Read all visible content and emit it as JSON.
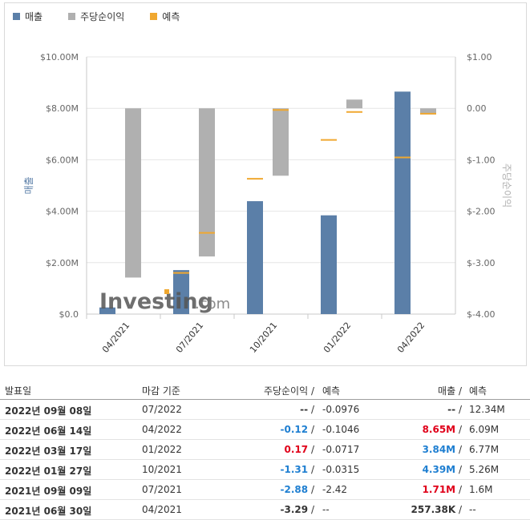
{
  "legend": [
    {
      "label": "매출",
      "color": "#5b7fa8"
    },
    {
      "label": "주당순이익",
      "color": "#b0b0b0"
    },
    {
      "label": "예측",
      "color": "#f0a830"
    }
  ],
  "watermark": {
    "brand": "Investing",
    "suffix": ".com"
  },
  "chart_data": {
    "type": "bar",
    "categories": [
      "04/2021",
      "07/2021",
      "10/2021",
      "01/2022",
      "04/2022"
    ],
    "left_axis": {
      "label": "매출",
      "ylim": [
        0,
        10000000
      ],
      "ticks": [
        0,
        2000000,
        4000000,
        6000000,
        8000000,
        10000000
      ],
      "tick_labels": [
        "$0.0",
        "$2.00M",
        "$4.00M",
        "$6.00M",
        "$8.00M",
        "$10.00M"
      ]
    },
    "right_axis": {
      "label": "주당순이익",
      "ylim": [
        -4,
        1
      ],
      "ticks": [
        -4,
        -3,
        -2,
        -1,
        0,
        1
      ],
      "tick_labels": [
        "$-4.00",
        "$-3.00",
        "$-2.00",
        "$-1.00",
        "0.00",
        "$1.00"
      ]
    },
    "series": [
      {
        "name": "매출",
        "axis": "left",
        "color": "#5b7fa8",
        "values": [
          257380,
          1710000,
          4390000,
          3840000,
          8650000
        ]
      },
      {
        "name": "주당순이익",
        "axis": "right",
        "color": "#b0b0b0",
        "values": [
          -3.29,
          -2.88,
          -1.31,
          0.17,
          -0.12
        ]
      }
    ],
    "forecasts": [
      {
        "name": "예측",
        "axis": "left",
        "color": "#f0a830",
        "values": [
          null,
          1600000,
          5260000,
          6770000,
          6090000
        ]
      },
      {
        "name": "예측",
        "axis": "right",
        "color": "#f0a830",
        "values": [
          null,
          -2.42,
          -0.0315,
          -0.0717,
          -0.1046
        ]
      }
    ],
    "grid": true
  },
  "table": {
    "headers": {
      "date": "발표일",
      "period": "마감 기준",
      "eps": "주당순이익",
      "eps_sep": " /",
      "eps_fc": "예측",
      "rev": "매출",
      "rev_sep": " /",
      "rev_fc": "예측"
    },
    "rows": [
      {
        "date": "2022년 09월 08일",
        "period": "07/2022",
        "eps": "--",
        "eps_cls": "neu",
        "eps_fc": "-0.0976",
        "rev": "--",
        "rev_cls": "neu",
        "rev_fc": "12.34M"
      },
      {
        "date": "2022년 06월 14일",
        "period": "04/2022",
        "eps": "-0.12",
        "eps_cls": "neg",
        "eps_fc": "-0.1046",
        "rev": "8.65M",
        "rev_cls": "pos",
        "rev_fc": "6.09M"
      },
      {
        "date": "2022년 03월 17일",
        "period": "01/2022",
        "eps": "0.17",
        "eps_cls": "pos",
        "eps_fc": "-0.0717",
        "rev": "3.84M",
        "rev_cls": "neg",
        "rev_fc": "6.77M"
      },
      {
        "date": "2022년 01월 27일",
        "period": "10/2021",
        "eps": "-1.31",
        "eps_cls": "neg",
        "eps_fc": "-0.0315",
        "rev": "4.39M",
        "rev_cls": "neg",
        "rev_fc": "5.26M"
      },
      {
        "date": "2021년 09월 09일",
        "period": "07/2021",
        "eps": "-2.88",
        "eps_cls": "neg",
        "eps_fc": "-2.42",
        "rev": "1.71M",
        "rev_cls": "pos",
        "rev_fc": "1.6M"
      },
      {
        "date": "2021년 06월 30일",
        "period": "04/2021",
        "eps": "-3.29",
        "eps_cls": "neu",
        "eps_fc": "--",
        "rev": "257.38K",
        "rev_cls": "neu",
        "rev_fc": "--"
      }
    ],
    "sep": "/"
  }
}
